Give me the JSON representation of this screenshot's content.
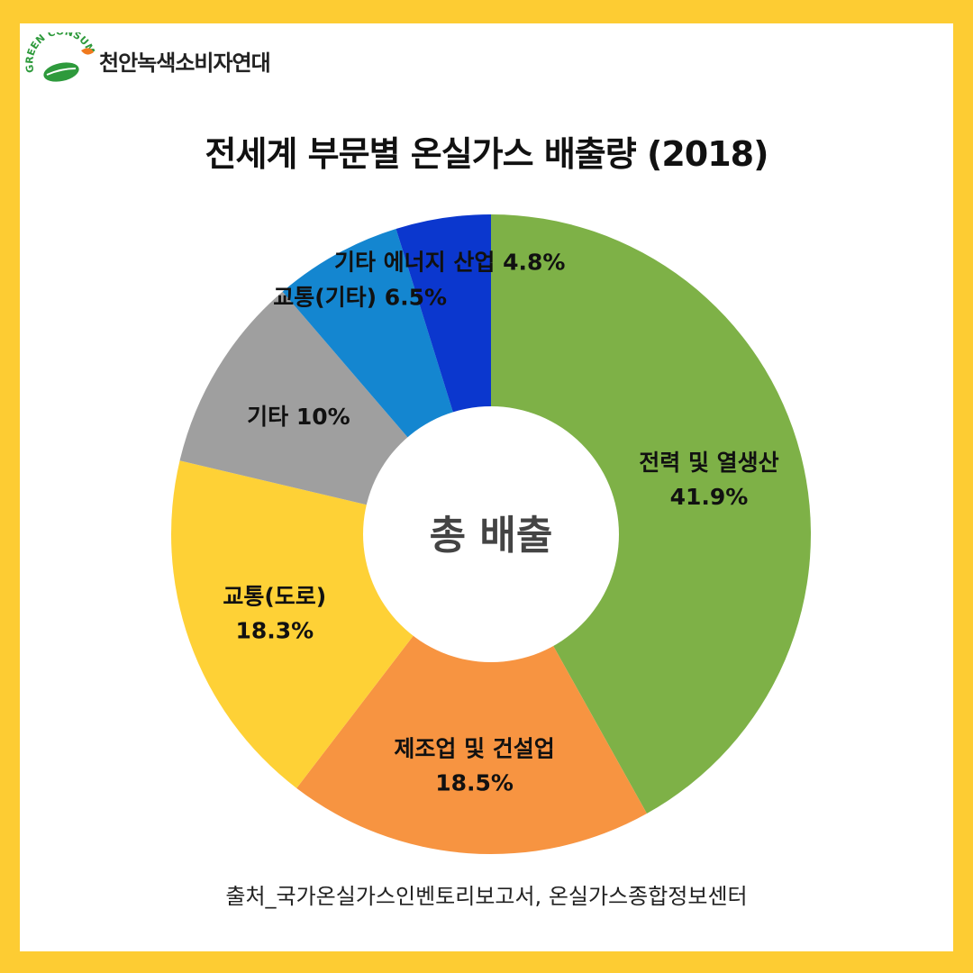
{
  "header": {
    "org_name": "천안녹색소비자연대",
    "logo_text": "GREEN CONSUMER",
    "logo_icon": "leaf-icon"
  },
  "title": "전세계 부문별 온실가스 배출량 (2018)",
  "source": "출처_국가온실가스인벤토리보고서, 온실가스종합정보센터",
  "colors": {
    "background": "#FDCC33",
    "panel": "#FFFFFF",
    "logo_green": "#2E9A3C",
    "logo_orange": "#F07A1E"
  },
  "chart_data": {
    "type": "pie",
    "style": "donut",
    "center_label": "총 배출",
    "slices": [
      {
        "label": "전력 및 열생산",
        "value": 41.9,
        "value_label": "41.9%",
        "color": "#7EB147"
      },
      {
        "label": "제조업 및 건설업",
        "value": 18.5,
        "value_label": "18.5%",
        "color": "#F79441"
      },
      {
        "label": "교통(도로)",
        "value": 18.3,
        "value_label": "18.3%",
        "color": "#FED136"
      },
      {
        "label": "기타",
        "value": 10,
        "value_label": "10%",
        "color": "#9F9F9F"
      },
      {
        "label": "교통(기타)",
        "value": 6.5,
        "value_label": "6.5%",
        "color": "#1486D0"
      },
      {
        "label": "기타 에너지 산업",
        "value": 4.8,
        "value_label": "4.8%",
        "color": "#0B37CE"
      }
    ]
  }
}
